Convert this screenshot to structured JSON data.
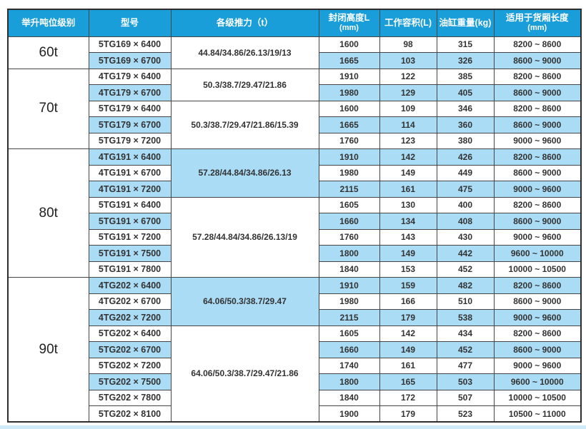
{
  "colors": {
    "header_bg": "#1a9ed9",
    "header_text": "#ffffff",
    "row_highlight": "#abdcf5",
    "row_plain": "#ffffff",
    "grid_border": "#454545",
    "text": "#333333",
    "bottom_strip": "#cfeaf8"
  },
  "table": {
    "headers": [
      {
        "label": "举升吨位级别",
        "sub": ""
      },
      {
        "label": "型号",
        "sub": ""
      },
      {
        "label": "各级推力（t）",
        "sub": ""
      },
      {
        "label": "封闭高度L",
        "sub": "(mm)"
      },
      {
        "label": "工作容积(L)",
        "sub": ""
      },
      {
        "label": "油缸重量(kg)",
        "sub": ""
      },
      {
        "label": "适用于货厢长度",
        "sub": "(mm)"
      }
    ],
    "groups": [
      {
        "tonnage": "60t",
        "subgroups": [
          {
            "thrust": "44.84/34.86/26.13/19/13",
            "thrust_shaded": false,
            "rows": [
              {
                "model": "5TG169 × 6400",
                "closed_height": "1600",
                "volume": "98",
                "weight": "315",
                "cargo_length": "8200 ~ 8600",
                "shaded": false
              },
              {
                "model": "5TG169 × 6700",
                "closed_height": "1665",
                "volume": "103",
                "weight": "326",
                "cargo_length": "8600 ~ 9000",
                "shaded": true
              }
            ]
          }
        ]
      },
      {
        "tonnage": "70t",
        "subgroups": [
          {
            "thrust": "50.3/38.7/29.47/21.86",
            "thrust_shaded": false,
            "rows": [
              {
                "model": "4TG179 × 6400",
                "closed_height": "1910",
                "volume": "122",
                "weight": "385",
                "cargo_length": "8200 ~ 8600",
                "shaded": false
              },
              {
                "model": "4TG179 × 6700",
                "closed_height": "1980",
                "volume": "129",
                "weight": "405",
                "cargo_length": "8600 ~ 9000",
                "shaded": true
              }
            ]
          },
          {
            "thrust": "50.3/38.7/29.47/21.86/15.39",
            "thrust_shaded": false,
            "rows": [
              {
                "model": "5TG179 × 6400",
                "closed_height": "1600",
                "volume": "109",
                "weight": "346",
                "cargo_length": "8200 ~ 8600",
                "shaded": false
              },
              {
                "model": "5TG179 × 6700",
                "closed_height": "1665",
                "volume": "114",
                "weight": "360",
                "cargo_length": "8600 ~ 9000",
                "shaded": true
              },
              {
                "model": "5TG179 × 7200",
                "closed_height": "1760",
                "volume": "123",
                "weight": "380",
                "cargo_length": "9000 ~ 9600",
                "shaded": false
              }
            ]
          }
        ]
      },
      {
        "tonnage": "80t",
        "subgroups": [
          {
            "thrust": "57.28/44.84/34.86/26.13",
            "thrust_shaded": true,
            "rows": [
              {
                "model": "4TG191 × 6400",
                "closed_height": "1910",
                "volume": "142",
                "weight": "426",
                "cargo_length": "8200 ~ 8600",
                "shaded": true
              },
              {
                "model": "4TG191 × 6700",
                "closed_height": "1980",
                "volume": "149",
                "weight": "449",
                "cargo_length": "8600 ~ 9000",
                "shaded": false
              },
              {
                "model": "4TG191 × 7200",
                "closed_height": "2115",
                "volume": "161",
                "weight": "475",
                "cargo_length": "9000 ~ 9600",
                "shaded": true
              }
            ]
          },
          {
            "thrust": "57.28/44.84/34.86/26.13/19",
            "thrust_shaded": false,
            "rows": [
              {
                "model": "5TG191 × 6400",
                "closed_height": "1605",
                "volume": "130",
                "weight": "400",
                "cargo_length": "8200 ~ 8600",
                "shaded": false
              },
              {
                "model": "5TG191 × 6700",
                "closed_height": "1660",
                "volume": "134",
                "weight": "408",
                "cargo_length": "8600 ~ 9000",
                "shaded": true
              },
              {
                "model": "5TG191 × 7200",
                "closed_height": "1760",
                "volume": "143",
                "weight": "430",
                "cargo_length": "9000 ~ 9600",
                "shaded": false
              },
              {
                "model": "5TG191 × 7500",
                "closed_height": "1800",
                "volume": "149",
                "weight": "442",
                "cargo_length": "9600 ~ 10000",
                "shaded": true
              },
              {
                "model": "5TG191 × 7800",
                "closed_height": "1840",
                "volume": "153",
                "weight": "452",
                "cargo_length": "10000 ~ 10500",
                "shaded": false
              }
            ]
          }
        ]
      },
      {
        "tonnage": "90t",
        "subgroups": [
          {
            "thrust": "64.06/50.3/38.7/29.47",
            "thrust_shaded": true,
            "rows": [
              {
                "model": "4TG202 × 6400",
                "closed_height": "1910",
                "volume": "159",
                "weight": "482",
                "cargo_length": "8200 ~ 8600",
                "shaded": true
              },
              {
                "model": "4TG202 × 6700",
                "closed_height": "1980",
                "volume": "166",
                "weight": "510",
                "cargo_length": "8600 ~ 9000",
                "shaded": false
              },
              {
                "model": "4TG202 × 7200",
                "closed_height": "2115",
                "volume": "179",
                "weight": "538",
                "cargo_length": "9000 ~ 9600",
                "shaded": true
              }
            ]
          },
          {
            "thrust": "64.06/50.3/38.7/29.47/21.86",
            "thrust_shaded": false,
            "rows": [
              {
                "model": "5TG202 × 6400",
                "closed_height": "1605",
                "volume": "142",
                "weight": "434",
                "cargo_length": "8200 ~ 8600",
                "shaded": false
              },
              {
                "model": "5TG202 × 6700",
                "closed_height": "1660",
                "volume": "149",
                "weight": "452",
                "cargo_length": "8600 ~ 9000",
                "shaded": true
              },
              {
                "model": "5TG202 × 7200",
                "closed_height": "1740",
                "volume": "161",
                "weight": "477",
                "cargo_length": "9000 ~ 9600",
                "shaded": false
              },
              {
                "model": "5TG202 × 7500",
                "closed_height": "1800",
                "volume": "165",
                "weight": "503",
                "cargo_length": "9600 ~ 10000",
                "shaded": true
              },
              {
                "model": "5TG202 × 7800",
                "closed_height": "1840",
                "volume": "172",
                "weight": "507",
                "cargo_length": "10000 ~ 10500",
                "shaded": false
              },
              {
                "model": "5TG202 × 8100",
                "closed_height": "1900",
                "volume": "179",
                "weight": "523",
                "cargo_length": "10500 ~ 11000",
                "shaded": false
              }
            ]
          }
        ]
      }
    ]
  }
}
